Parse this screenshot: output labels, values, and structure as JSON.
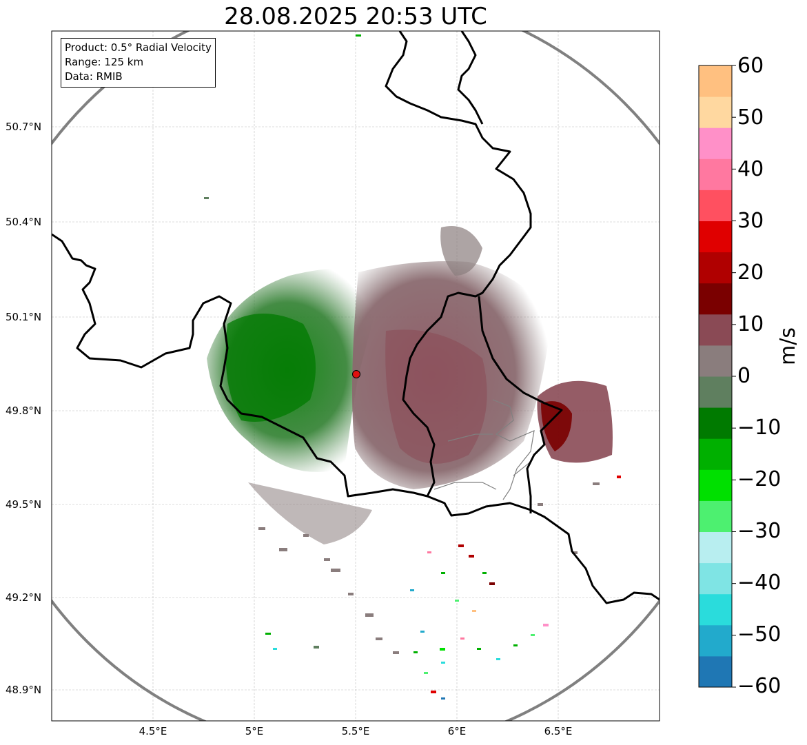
{
  "title": "28.08.2025 20:53 UTC",
  "info": {
    "product": "Product: 0.5° Radial Velocity",
    "range": "Range: 125 km",
    "data": "Data: RMIB"
  },
  "lat_labels": [
    "50.7°N",
    "50.4°N",
    "50.1°N",
    "49.8°N",
    "49.5°N",
    "49.2°N",
    "48.9°N"
  ],
  "lon_labels": [
    "4.5°E",
    "5°E",
    "5.5°E",
    "6°E",
    "6.5°E"
  ],
  "colorbar": {
    "label": "m/s",
    "ticks": [
      "60",
      "50",
      "40",
      "30",
      "20",
      "10",
      "0",
      "−10",
      "−20",
      "−30",
      "−40",
      "−50",
      "−60"
    ],
    "min": -60,
    "max": 60,
    "stops": [
      {
        "v": -60,
        "c": "#1f77b4"
      },
      {
        "v": -54,
        "c": "#22aacc"
      },
      {
        "v": -48,
        "c": "#2adcdc"
      },
      {
        "v": -42,
        "c": "#7fe4e4"
      },
      {
        "v": -36,
        "c": "#b8eef0"
      },
      {
        "v": -30,
        "c": "#4df070"
      },
      {
        "v": -24,
        "c": "#00e000"
      },
      {
        "v": -18,
        "c": "#00b000"
      },
      {
        "v": -12,
        "c": "#007a00"
      },
      {
        "v": -6,
        "c": "#5f7f5f"
      },
      {
        "v": 0,
        "c": "#8a7d7d"
      },
      {
        "v": 6,
        "c": "#8a4a55"
      },
      {
        "v": 12,
        "c": "#7a0000"
      },
      {
        "v": 18,
        "c": "#b00000"
      },
      {
        "v": 24,
        "c": "#e00000"
      },
      {
        "v": 30,
        "c": "#ff5060"
      },
      {
        "v": 36,
        "c": "#ff78a0"
      },
      {
        "v": 42,
        "c": "#ff90c8"
      },
      {
        "v": 48,
        "c": "#ffd8a0"
      },
      {
        "v": 54,
        "c": "#ffc080"
      },
      {
        "v": 60,
        "c": "#ffa060"
      }
    ]
  },
  "radar_site": {
    "lon": 5.5,
    "lat": 49.915
  },
  "colors": {
    "border": "#000000",
    "range_ring": "#808080",
    "grid": "#bdbdbd",
    "site": "#e01010"
  }
}
